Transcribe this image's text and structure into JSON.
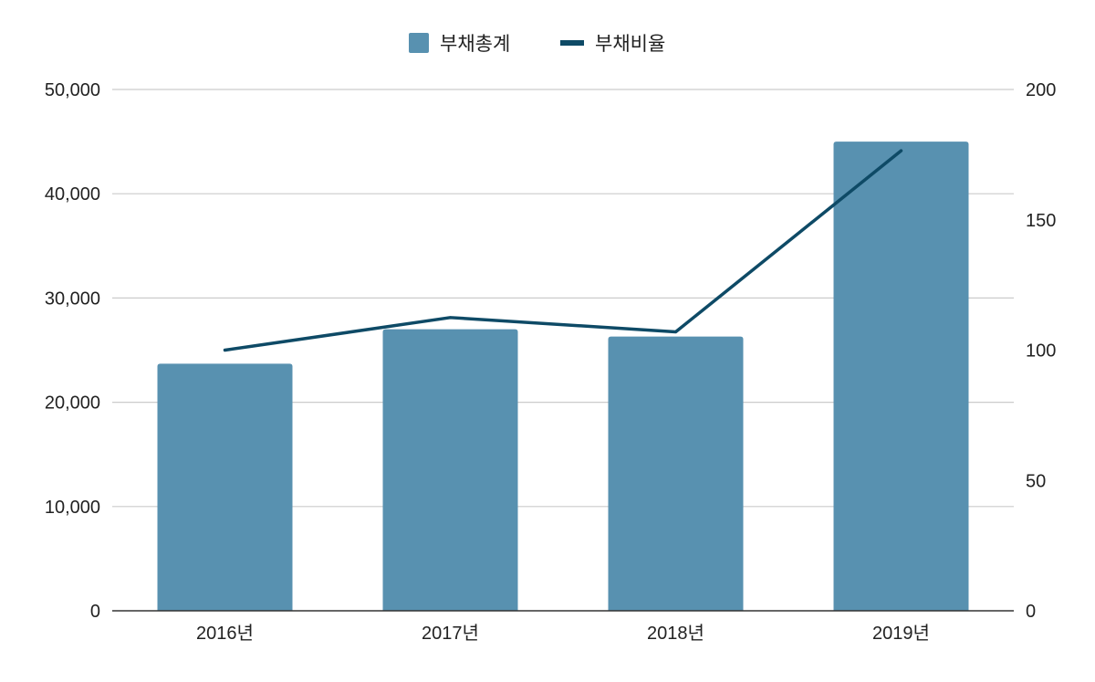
{
  "chart_data": {
    "type": "bar",
    "categories": [
      "2016년",
      "2017년",
      "2018년",
      "2019년"
    ],
    "series": [
      {
        "name": "부채총계",
        "type": "bar",
        "axis": "left",
        "values": [
          23700,
          27000,
          26300,
          45000
        ]
      },
      {
        "name": "부채비율",
        "type": "line",
        "axis": "right",
        "values": [
          100,
          112.5,
          107,
          176.5
        ]
      }
    ],
    "y_left": {
      "ticks": [
        "0",
        "10,000",
        "20,000",
        "30,000",
        "40,000",
        "50,000"
      ],
      "ylim": [
        0,
        50000
      ]
    },
    "y_right": {
      "ticks": [
        "0",
        "50",
        "100",
        "150",
        "200"
      ],
      "ylim": [
        0,
        200
      ]
    },
    "grid": true,
    "legend": {
      "position": "top-center"
    }
  },
  "colors": {
    "bar": "#5891b0",
    "line": "#0e4a66",
    "grid": "#cccccc",
    "axis": "#333333"
  }
}
